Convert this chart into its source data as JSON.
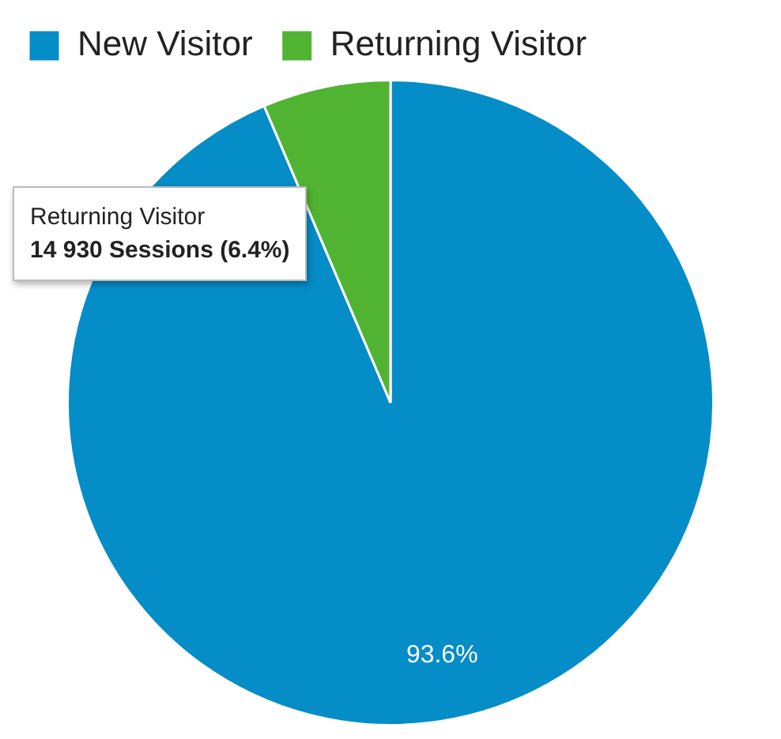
{
  "chart_data": {
    "type": "pie",
    "categories": [
      "New Visitor",
      "Returning Visitor"
    ],
    "values": [
      93.6,
      6.4
    ],
    "colors": [
      "#058dc7",
      "#50b432"
    ],
    "value_labels": [
      "93.6%",
      null
    ],
    "legend": "top",
    "annotations": [
      "Returning Visitor",
      "14 930 Sessions (6.4%)"
    ]
  }
}
